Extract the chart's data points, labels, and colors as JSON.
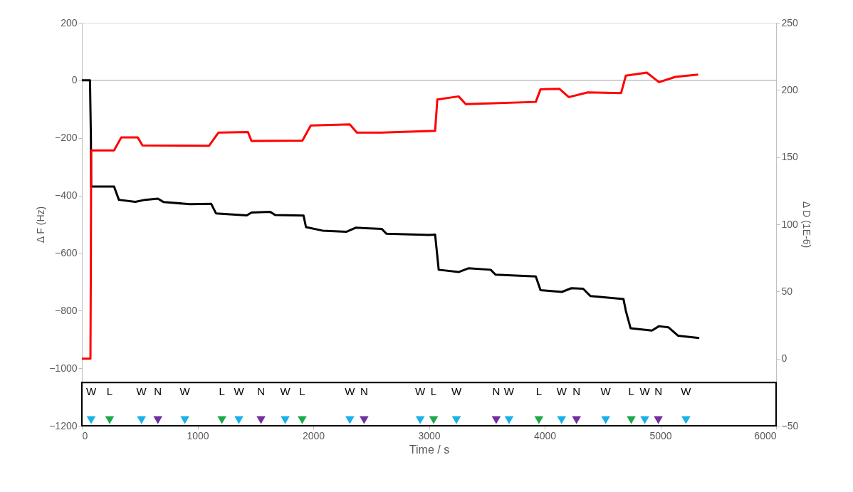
{
  "chart_data": {
    "type": "line",
    "xlabel": "Time / s",
    "ylabel": "Δ F (Hz)",
    "y2label": "Δ D (1E-6)",
    "xlim": [
      0,
      6000
    ],
    "xticks": [
      0,
      1000,
      2000,
      3000,
      4000,
      5000,
      6000
    ],
    "ylim": [
      -1200,
      200
    ],
    "yticks": [
      -1200,
      -1000,
      -800,
      -600,
      -400,
      -200,
      0,
      200
    ],
    "y2lim": [
      -50,
      250
    ],
    "y2ticks": [
      -50,
      0,
      50,
      100,
      150,
      200,
      250
    ],
    "grid": false,
    "marker": "none",
    "line_style": "solid",
    "ref_lines": [
      {
        "axis": "y",
        "value": 0,
        "color": "#bfbfbf"
      }
    ],
    "bands": [
      {
        "axis": "y",
        "from": -1200,
        "to": -1050,
        "color": "#ffffff"
      }
    ],
    "series": [
      {
        "color": "#000000",
        "x": [
          0,
          70,
          78,
          80,
          278,
          320,
          462,
          545,
          657,
          707,
          934,
          1118,
          1159,
          1425,
          1466,
          1628,
          1671,
          1916,
          1937,
          2080,
          2285,
          2366,
          2592,
          2633,
          3002,
          3053,
          3084,
          3256,
          3340,
          3533,
          3575,
          3923,
          3964,
          4148,
          4231,
          4332,
          4394,
          4681,
          4701,
          4742,
          4926,
          4988,
          5069,
          5152,
          5336
        ],
        "values": [
          0,
          0,
          -200,
          -369,
          -369,
          -415,
          -422,
          -415,
          -411,
          -423,
          -430,
          -429,
          -462,
          -469,
          -459,
          -457,
          -468,
          -470,
          -510,
          -522,
          -526,
          -512,
          -516,
          -533,
          -537,
          -536,
          -658,
          -666,
          -653,
          -658,
          -675,
          -681,
          -729,
          -735,
          -722,
          -724,
          -749,
          -760,
          -800,
          -861,
          -869,
          -854,
          -858,
          -887,
          -895
        ]
      },
      {
        "color": "#ff0000",
        "axis": "y2",
        "x": [
          0,
          74,
          78,
          80,
          278,
          340,
          483,
          524,
          1098,
          1180,
          1435,
          1466,
          1906,
          1978,
          2316,
          2377,
          2592,
          3002,
          3053,
          3072,
          3256,
          3318,
          3514,
          3923,
          3964,
          4128,
          4208,
          4373,
          4660,
          4701,
          4883,
          4988,
          5129,
          5326
        ],
        "values": [
          0,
          0,
          80,
          155,
          155,
          164.6,
          164.6,
          158.7,
          158.4,
          168.2,
          168.7,
          162,
          162.3,
          173.5,
          174.3,
          168.2,
          168.2,
          169.4,
          169.6,
          192.9,
          195.2,
          189.4,
          190,
          191.1,
          200.5,
          200.8,
          194.7,
          198.2,
          197.6,
          210.6,
          212.9,
          205.8,
          209.7,
          211.4
        ]
      },
      {
        "type": "scatter",
        "marker": "triangle",
        "color": "#1ab0e8",
        "x": [
          80,
          515,
          890,
          1357,
          1757,
          2316,
          2924,
          3237,
          3692,
          4146,
          4527,
          4865,
          5221
        ],
        "values": [
          -1180,
          -1180,
          -1180,
          -1180,
          -1180,
          -1180,
          -1180,
          -1180,
          -1180,
          -1180,
          -1180,
          -1180,
          -1180
        ]
      },
      {
        "type": "scatter",
        "marker": "triangle",
        "color": "#1ea84c",
        "x": [
          240,
          1210,
          1904,
          3040,
          3950,
          4748
        ],
        "values": [
          -1180,
          -1180,
          -1180,
          -1180,
          -1180,
          -1180
        ]
      },
      {
        "type": "scatter",
        "marker": "triangle",
        "color": "#7030a0",
        "x": [
          657,
          1548,
          2439,
          3581,
          4275,
          4982
        ],
        "values": [
          -1180,
          -1180,
          -1180,
          -1180,
          -1180,
          -1180
        ]
      }
    ],
    "annotations": [
      {
        "text": "W",
        "x": 80,
        "y": -1180
      },
      {
        "text": "L",
        "x": 240,
        "y": -1180
      },
      {
        "text": "W",
        "x": 515,
        "y": -1180
      },
      {
        "text": "N",
        "x": 657,
        "y": -1180
      },
      {
        "text": "W",
        "x": 890,
        "y": -1180
      },
      {
        "text": "L",
        "x": 1210,
        "y": -1180
      },
      {
        "text": "W",
        "x": 1357,
        "y": -1180
      },
      {
        "text": "N",
        "x": 1548,
        "y": -1180
      },
      {
        "text": "W",
        "x": 1757,
        "y": -1180
      },
      {
        "text": "L",
        "x": 1904,
        "y": -1180
      },
      {
        "text": "W",
        "x": 2316,
        "y": -1180
      },
      {
        "text": "N",
        "x": 2439,
        "y": -1180
      },
      {
        "text": "W",
        "x": 2924,
        "y": -1180
      },
      {
        "text": "L",
        "x": 3040,
        "y": -1180
      },
      {
        "text": "W",
        "x": 3237,
        "y": -1180
      },
      {
        "text": "N",
        "x": 3581,
        "y": -1180
      },
      {
        "text": "W",
        "x": 3692,
        "y": -1180
      },
      {
        "text": "L",
        "x": 3950,
        "y": -1180
      },
      {
        "text": "W",
        "x": 4146,
        "y": -1180
      },
      {
        "text": "N",
        "x": 4275,
        "y": -1180
      },
      {
        "text": "W",
        "x": 4527,
        "y": -1180
      },
      {
        "text": "L",
        "x": 4748,
        "y": -1180
      },
      {
        "text": "W",
        "x": 4865,
        "y": -1180
      },
      {
        "text": "N",
        "x": 4982,
        "y": -1180
      },
      {
        "text": "W",
        "x": 5221,
        "y": -1180
      }
    ]
  }
}
